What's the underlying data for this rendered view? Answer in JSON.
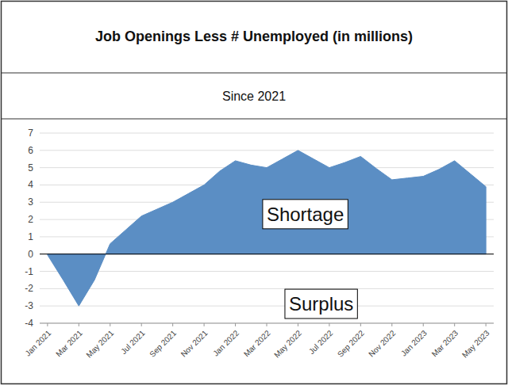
{
  "chart_data": {
    "type": "area",
    "title": "Job Openings Less # Unemployed (in millions)",
    "subtitle": "Since 2021",
    "categories": [
      "Jan 2021",
      null,
      "Mar 2021",
      null,
      "May 2021",
      null,
      "Jul 2021",
      null,
      "Sep 2021",
      null,
      "Nov 2021",
      null,
      "Jan 2022",
      null,
      "Mar 2022",
      null,
      "May 2022",
      null,
      "Jul 2022",
      null,
      "Sep 2022",
      null,
      "Nov 2022",
      null,
      "Jan 2023",
      null,
      "Mar 2023",
      null,
      "May 2023"
    ],
    "values": [
      -0.05,
      -1.5,
      -3.0,
      -1.5,
      0.6,
      1.4,
      2.2,
      2.6,
      3.0,
      3.5,
      4.0,
      4.8,
      5.4,
      5.15,
      5.0,
      5.5,
      6.0,
      5.5,
      5.0,
      5.3,
      5.65,
      4.95,
      4.3,
      4.4,
      4.5,
      4.9,
      5.4,
      4.65,
      3.9
    ],
    "color": "#5b8ec4",
    "ylim": [
      -4,
      7
    ],
    "yticks": [
      -4,
      -3,
      -2,
      -1,
      0,
      1,
      2,
      3,
      4,
      5,
      6,
      7
    ],
    "grid": true,
    "annotations": [
      {
        "text": "Shortage"
      },
      {
        "text": "Surplus"
      }
    ]
  }
}
